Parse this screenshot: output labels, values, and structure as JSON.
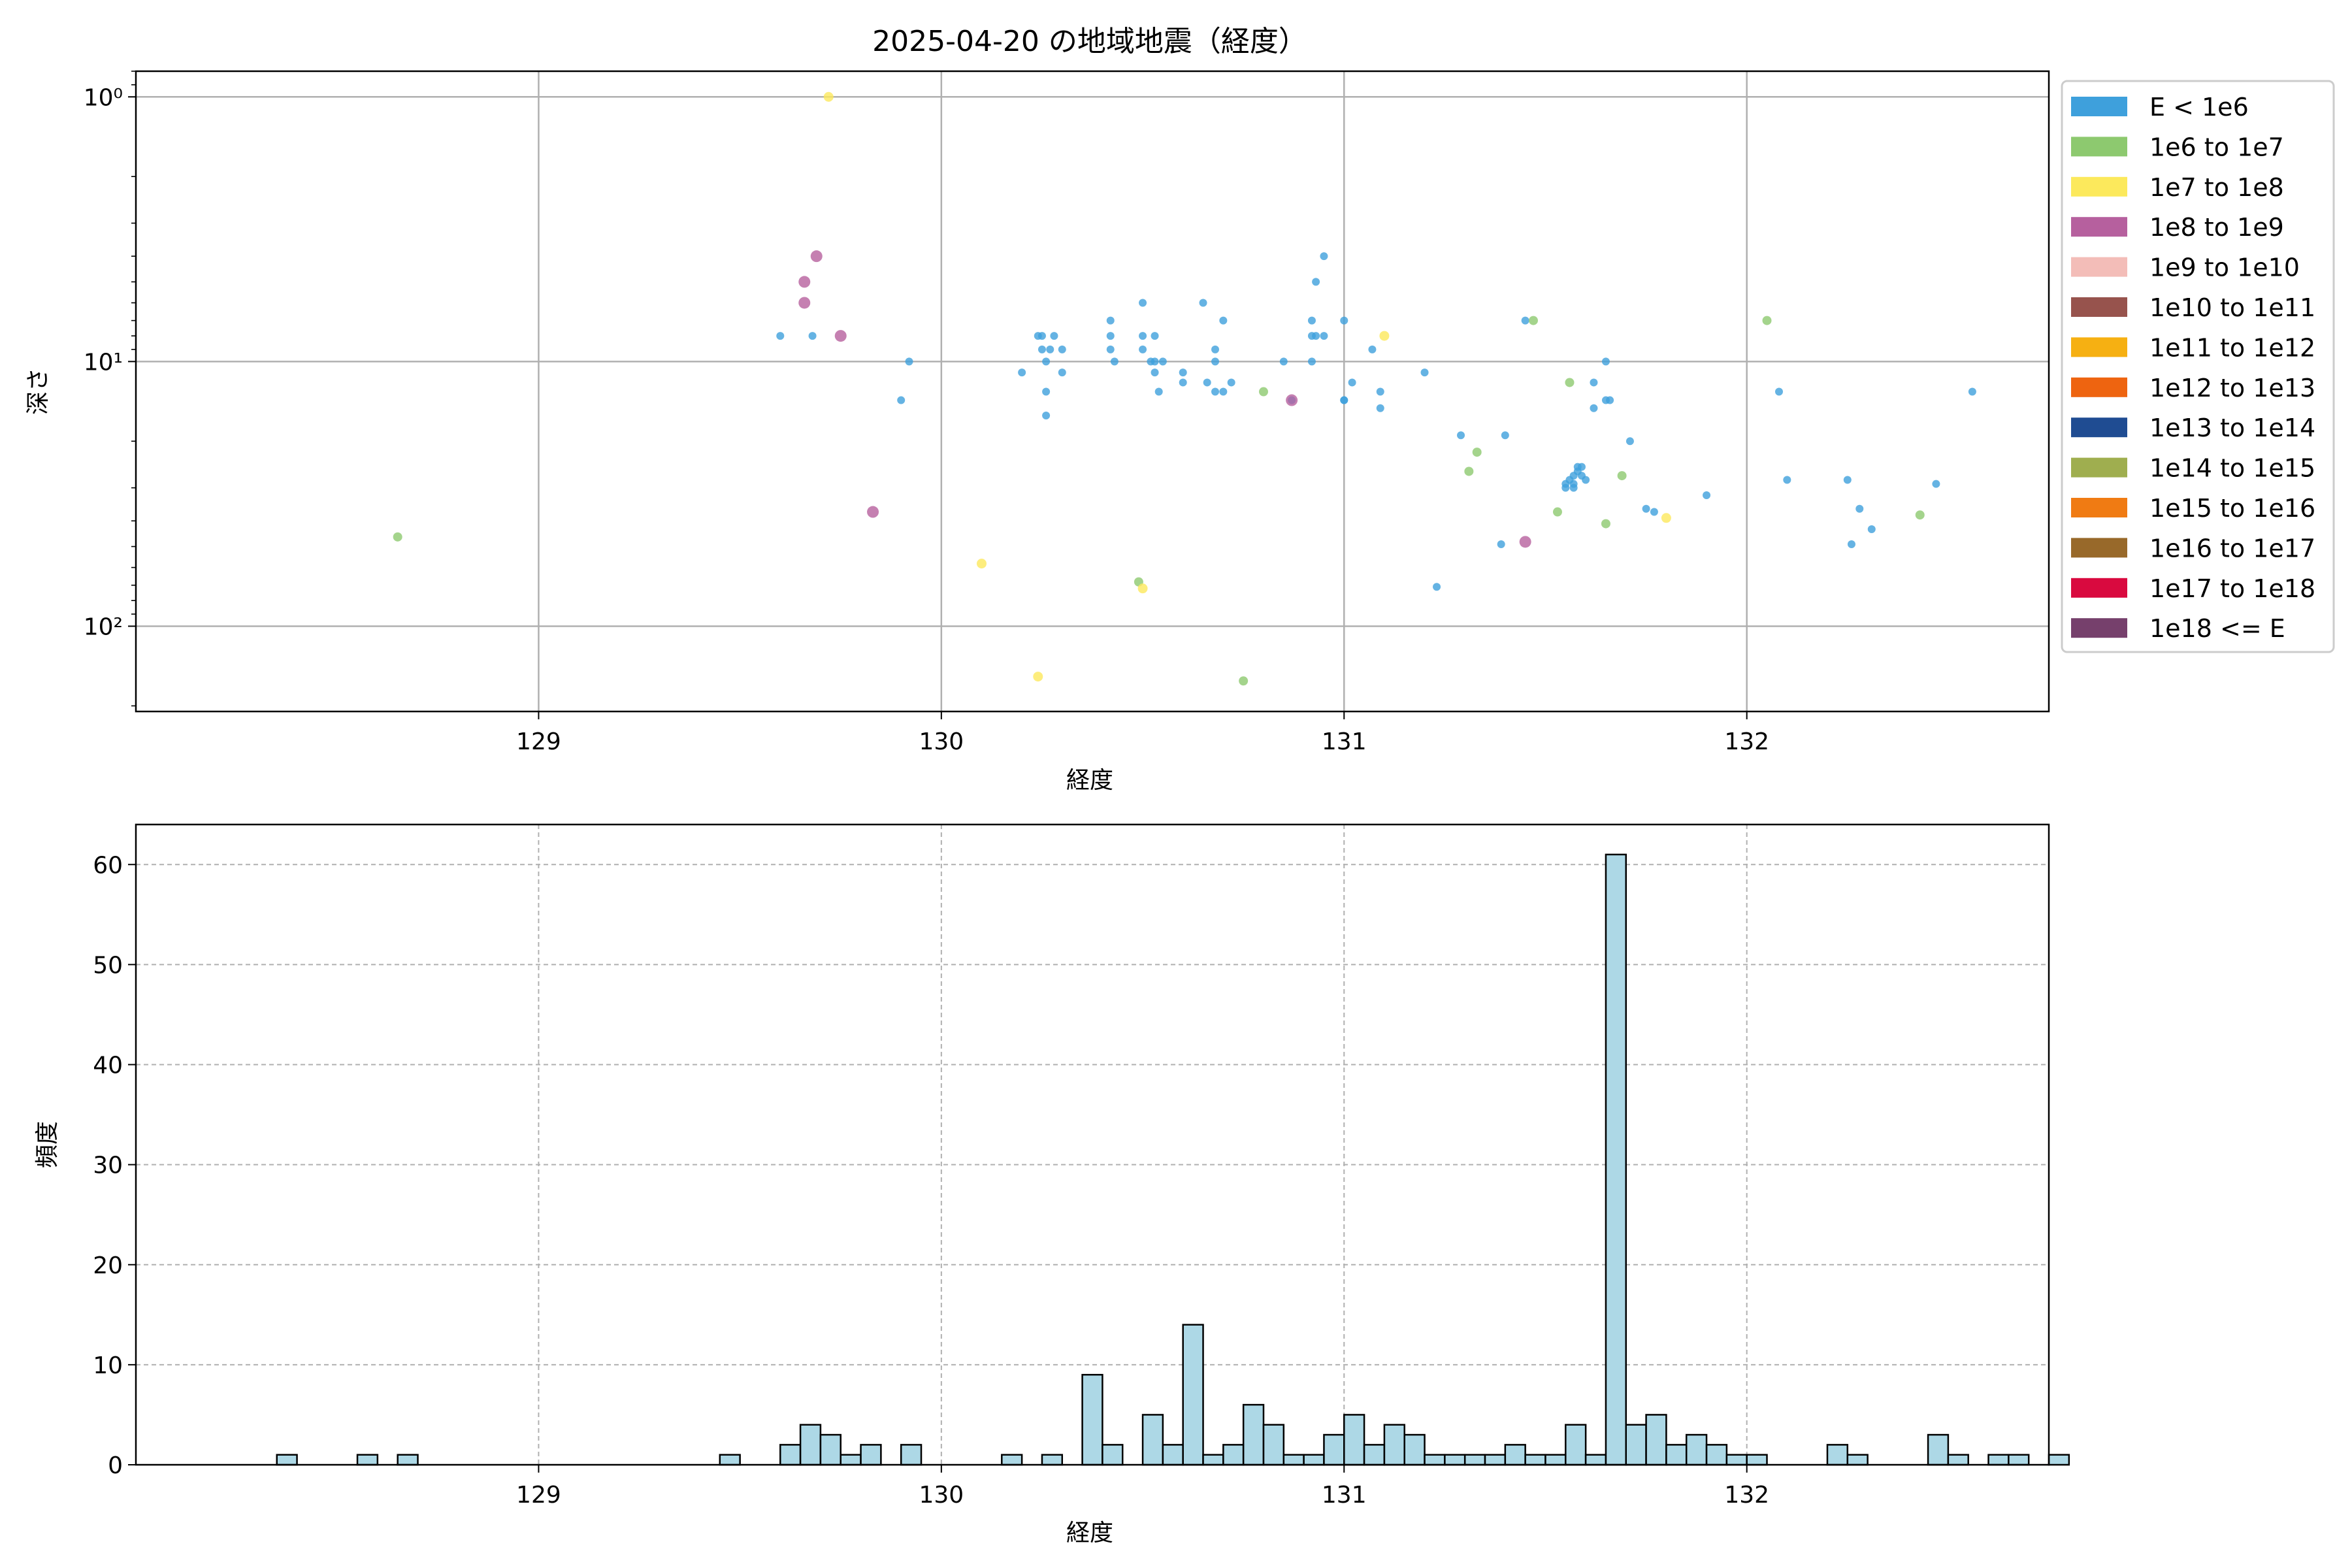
{
  "chart_data": [
    {
      "type": "scatter",
      "title": "2025-04-20 の地域地震（経度）",
      "xlabel": "経度",
      "ylabel": "深さ",
      "xlim": [
        128.0,
        132.75
      ],
      "ylim": [
        0.8,
        210
      ],
      "yscale": "log",
      "yinverted": true,
      "grid": true,
      "legend_position": "outside-right",
      "xticks": [
        129,
        130,
        131,
        132
      ],
      "yticks": [
        1,
        10,
        100
      ],
      "ytick_labels": [
        "10⁰",
        "10¹",
        "10²"
      ],
      "legend": [
        {
          "label": "E < 1e6",
          "color": "#3ea0dc"
        },
        {
          "label": "1e6 to 1e7",
          "color": "#8dc96f"
        },
        {
          "label": "1e7 to 1e8",
          "color": "#fce95c"
        },
        {
          "label": "1e8 to 1e9",
          "color": "#b6609e"
        },
        {
          "label": "1e9 to 1e10",
          "color": "#f3bdb8"
        },
        {
          "label": "1e10 to 1e11",
          "color": "#97534d"
        },
        {
          "label": "1e11 to 1e12",
          "color": "#f6b012"
        },
        {
          "label": "1e12 to 1e13",
          "color": "#ee6410"
        },
        {
          "label": "1e13 to 1e14",
          "color": "#1f4c92"
        },
        {
          "label": "1e14 to 1e15",
          "color": "#9fae4f"
        },
        {
          "label": "1e15 to 1e16",
          "color": "#f07b13"
        },
        {
          "label": "1e16 to 1e17",
          "color": "#98692a"
        },
        {
          "label": "1e17 to 1e18",
          "color": "#d90a3f"
        },
        {
          "label": "1e18 <= E",
          "color": "#76406c"
        }
      ],
      "series": [
        {
          "name": "E < 1e6",
          "points": [
            [
              129.6,
              8
            ],
            [
              129.68,
              8
            ],
            [
              129.9,
              14
            ],
            [
              129.92,
              10
            ],
            [
              130.2,
              11
            ],
            [
              130.24,
              8
            ],
            [
              130.25,
              8
            ],
            [
              130.25,
              9
            ],
            [
              130.26,
              10
            ],
            [
              130.26,
              13
            ],
            [
              130.26,
              16
            ],
            [
              130.27,
              9
            ],
            [
              130.28,
              8
            ],
            [
              130.3,
              11
            ],
            [
              130.3,
              9
            ],
            [
              130.42,
              9
            ],
            [
              130.42,
              7
            ],
            [
              130.42,
              8
            ],
            [
              130.43,
              10
            ],
            [
              130.5,
              6
            ],
            [
              130.5,
              8
            ],
            [
              130.5,
              9
            ],
            [
              130.52,
              10
            ],
            [
              130.53,
              8
            ],
            [
              130.53,
              11
            ],
            [
              130.53,
              10
            ],
            [
              130.54,
              13
            ],
            [
              130.55,
              10
            ],
            [
              130.6,
              12
            ],
            [
              130.6,
              11
            ],
            [
              130.65,
              6
            ],
            [
              130.66,
              12
            ],
            [
              130.68,
              9
            ],
            [
              130.68,
              13
            ],
            [
              130.68,
              10
            ],
            [
              130.7,
              7
            ],
            [
              130.7,
              13
            ],
            [
              130.72,
              12
            ],
            [
              130.85,
              10
            ],
            [
              130.87,
              14
            ],
            [
              130.92,
              10
            ],
            [
              130.92,
              7
            ],
            [
              130.92,
              8
            ],
            [
              130.93,
              8
            ],
            [
              130.93,
              5
            ],
            [
              130.95,
              4
            ],
            [
              130.95,
              8
            ],
            [
              131.0,
              7
            ],
            [
              131.0,
              14
            ],
            [
              131.0,
              14
            ],
            [
              131.02,
              12
            ],
            [
              131.07,
              9
            ],
            [
              131.09,
              13
            ],
            [
              131.09,
              15
            ],
            [
              131.2,
              11
            ],
            [
              131.23,
              71
            ],
            [
              131.29,
              19
            ],
            [
              131.39,
              49
            ],
            [
              131.4,
              19
            ],
            [
              131.45,
              7
            ],
            [
              131.55,
              30
            ],
            [
              131.55,
              29
            ],
            [
              131.56,
              28
            ],
            [
              131.57,
              27
            ],
            [
              131.57,
              30
            ],
            [
              131.57,
              29
            ],
            [
              131.58,
              26
            ],
            [
              131.58,
              25
            ],
            [
              131.59,
              25
            ],
            [
              131.59,
              27
            ],
            [
              131.6,
              28
            ],
            [
              131.62,
              12
            ],
            [
              131.62,
              15
            ],
            [
              131.65,
              10
            ],
            [
              131.65,
              14
            ],
            [
              131.66,
              14
            ],
            [
              131.71,
              20
            ],
            [
              131.75,
              36
            ],
            [
              131.77,
              37
            ],
            [
              131.9,
              32
            ],
            [
              132.08,
              13
            ],
            [
              132.1,
              28
            ],
            [
              132.25,
              28
            ],
            [
              132.26,
              49
            ],
            [
              132.28,
              36
            ],
            [
              132.31,
              43
            ],
            [
              132.47,
              29
            ],
            [
              132.56,
              13
            ]
          ]
        },
        {
          "name": "1e6 to 1e7",
          "points": [
            [
              128.65,
              46
            ],
            [
              130.49,
              68
            ],
            [
              130.75,
              161
            ],
            [
              130.8,
              13
            ],
            [
              131.31,
              26
            ],
            [
              131.33,
              22
            ],
            [
              131.47,
              7
            ],
            [
              131.53,
              37
            ],
            [
              131.56,
              12
            ],
            [
              131.65,
              41
            ],
            [
              131.69,
              27
            ],
            [
              132.05,
              7
            ],
            [
              132.43,
              38
            ]
          ]
        },
        {
          "name": "1e7 to 1e8",
          "points": [
            [
              129.72,
              1
            ],
            [
              130.1,
              58
            ],
            [
              130.5,
              72
            ],
            [
              130.24,
              155
            ],
            [
              131.1,
              8
            ],
            [
              131.8,
              39
            ]
          ]
        },
        {
          "name": "1e8 to 1e9",
          "points": [
            [
              129.66,
              6
            ],
            [
              129.66,
              5
            ],
            [
              129.69,
              4
            ],
            [
              129.75,
              8
            ],
            [
              129.83,
              37
            ],
            [
              130.87,
              14
            ],
            [
              131.45,
              48
            ]
          ]
        }
      ]
    },
    {
      "type": "bar",
      "title": "",
      "xlabel": "経度",
      "ylabel": "頻度",
      "xlim": [
        128.0,
        132.75
      ],
      "ylim": [
        0,
        64
      ],
      "grid": true,
      "xticks": [
        129,
        130,
        131,
        132
      ],
      "yticks": [
        0,
        10,
        20,
        30,
        40,
        50,
        60
      ],
      "bin_start": 128.35,
      "bin_width": 0.05,
      "counts": [
        1,
        0,
        0,
        0,
        1,
        0,
        1,
        0,
        0,
        0,
        0,
        0,
        0,
        0,
        0,
        0,
        0,
        0,
        0,
        0,
        0,
        0,
        1,
        0,
        0,
        2,
        4,
        3,
        1,
        2,
        0,
        2,
        0,
        0,
        0,
        0,
        1,
        0,
        1,
        0,
        9,
        2,
        0,
        5,
        2,
        14,
        1,
        2,
        6,
        4,
        1,
        1,
        3,
        5,
        2,
        4,
        3,
        1,
        1,
        1,
        1,
        2,
        1,
        1,
        4,
        1,
        61,
        4,
        5,
        2,
        3,
        2,
        1,
        1,
        0,
        0,
        0,
        2,
        1,
        0,
        0,
        0,
        3,
        1,
        0,
        1,
        1,
        0,
        1
      ],
      "bar_color": "#add8e6"
    }
  ]
}
